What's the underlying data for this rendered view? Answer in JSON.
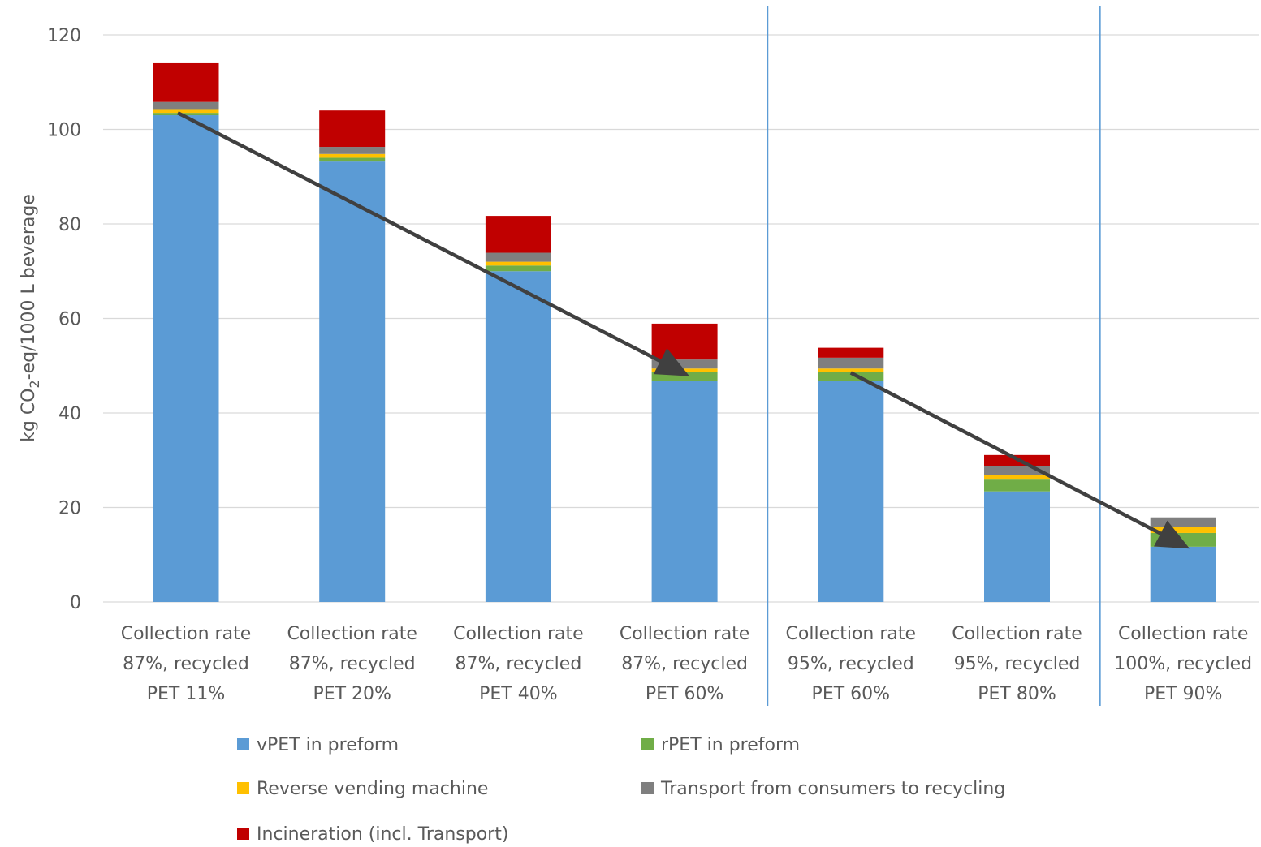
{
  "chart_data": {
    "type": "bar",
    "stacked": true,
    "title": "",
    "xlabel": "",
    "ylabel": "kg CO2-eq/1000 L beverage",
    "ylabel_parts": {
      "before": "kg CO",
      "sub": "2",
      "after": "-eq/1000 L beverage"
    },
    "ylim": [
      0,
      120
    ],
    "yticks": [
      "0",
      "20",
      "40",
      "60",
      "80",
      "100",
      "120"
    ],
    "categories": [
      [
        "Collection rate",
        "87%, recycled",
        "PET 11%"
      ],
      [
        "Collection rate",
        "87%, recycled",
        "PET 20%"
      ],
      [
        "Collection rate",
        "87%, recycled",
        "PET 40%"
      ],
      [
        "Collection rate",
        "87%, recycled",
        "PET 60%"
      ],
      [
        "Collection rate",
        "95%, recycled",
        "PET 60%"
      ],
      [
        "Collection rate",
        "95%, recycled",
        "PET 80%"
      ],
      [
        "Collection rate",
        "100%, recycled",
        "PET 90%"
      ]
    ],
    "series": [
      {
        "name": "vPET in preform",
        "color": "#5b9bd5",
        "values": [
          103,
          93.2,
          70,
          46.8,
          46.8,
          23.4,
          11.7
        ]
      },
      {
        "name": "rPET in preform",
        "color": "#70ad47",
        "values": [
          0.5,
          0.8,
          1.2,
          1.8,
          1.8,
          2.5,
          2.9
        ]
      },
      {
        "name": "Reverse vending machine",
        "color": "#ffc000",
        "values": [
          0.8,
          0.8,
          0.8,
          0.8,
          0.8,
          1.0,
          1.2
        ]
      },
      {
        "name": "Transport from consumers to recycling",
        "color": "#7f7f7f",
        "values": [
          1.5,
          1.5,
          1.9,
          1.9,
          2.3,
          1.8,
          2.1
        ]
      },
      {
        "name": "Incineration (incl. Transport)",
        "color": "#c00000",
        "values": [
          8.2,
          7.7,
          7.8,
          7.6,
          2.1,
          2.4,
          0
        ]
      }
    ],
    "group_separators_after": [
      4,
      6
    ],
    "trend_arrows": [
      {
        "from": {
          "category": 1,
          "y": 103.5
        },
        "to": {
          "category": 4,
          "y": 48.5
        }
      },
      {
        "from": {
          "category": 5,
          "y": 48.5
        },
        "to": {
          "category": 7,
          "y": 12
        }
      }
    ],
    "legend_position": "bottom",
    "grid": "horizontal"
  }
}
